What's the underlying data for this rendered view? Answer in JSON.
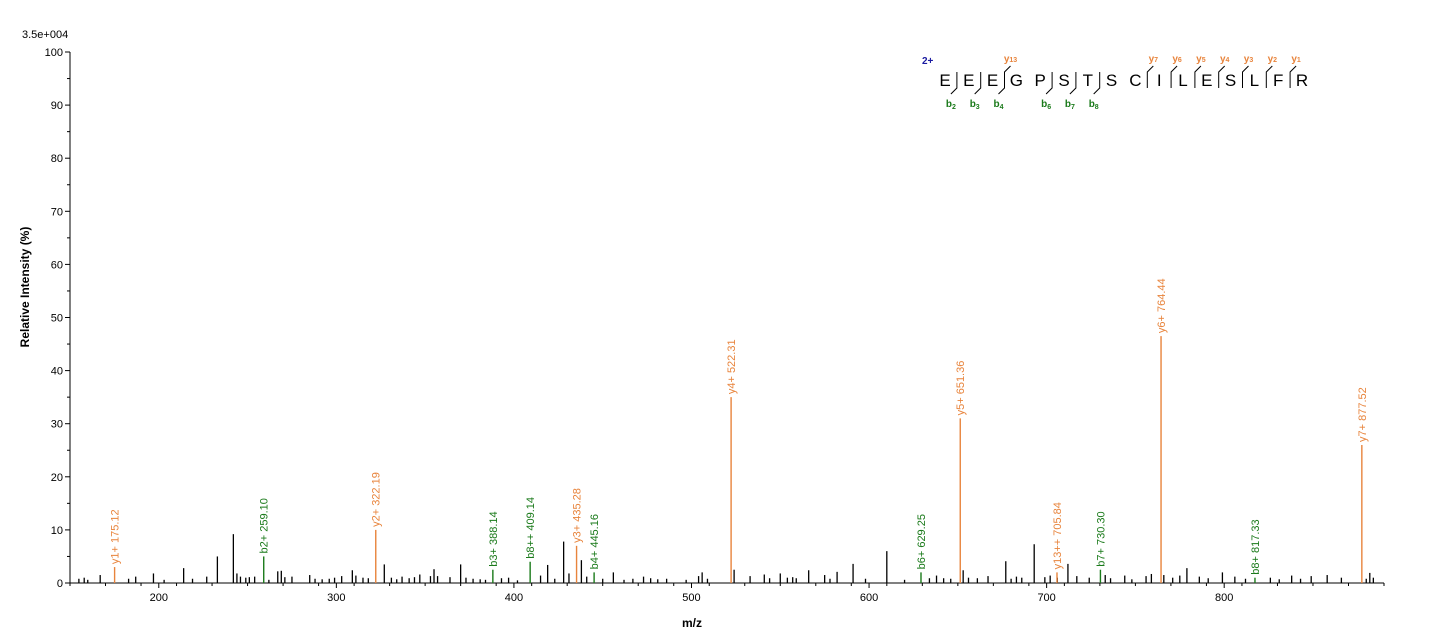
{
  "chart_data": {
    "type": "bar",
    "scale_label": "3.5e+004",
    "xlabel": "m/z",
    "ylabel": "Relative   Intensity (%)",
    "xlim": [
      150,
      890
    ],
    "ylim": [
      0,
      100
    ],
    "x_ticks": [
      200,
      300,
      400,
      500,
      600,
      700,
      800
    ],
    "y_ticks": [
      0,
      10,
      20,
      30,
      40,
      50,
      60,
      70,
      80,
      90,
      100
    ],
    "grid": false,
    "colors": {
      "y_ion": "#e8843c",
      "b_ion": "#1a7a1a",
      "unmatched": "#000000",
      "charge": "#1a1aa0"
    },
    "labeled_peaks": [
      {
        "type": "y",
        "mz": 175.12,
        "intensity": 3.0,
        "label": "y1+ 175.12"
      },
      {
        "type": "b",
        "mz": 259.1,
        "intensity": 5.0,
        "label": "b2+ 259.10"
      },
      {
        "type": "y",
        "mz": 322.19,
        "intensity": 10.0,
        "label": "y2+ 322.19"
      },
      {
        "type": "b",
        "mz": 388.14,
        "intensity": 2.5,
        "label": "b3+ 388.14"
      },
      {
        "type": "b",
        "mz": 409.14,
        "intensity": 4.0,
        "label": "b8++ 409.14"
      },
      {
        "type": "y",
        "mz": 435.28,
        "intensity": 7.0,
        "label": "y3+ 435.28"
      },
      {
        "type": "b",
        "mz": 445.16,
        "intensity": 2.0,
        "label": "b4+ 445.16"
      },
      {
        "type": "y",
        "mz": 522.31,
        "intensity": 35.0,
        "label": "y4+ 522.31"
      },
      {
        "type": "b",
        "mz": 629.25,
        "intensity": 2.0,
        "label": "b6+ 629.25"
      },
      {
        "type": "y",
        "mz": 651.36,
        "intensity": 31.0,
        "label": "y5+ 651.36"
      },
      {
        "type": "y",
        "mz": 705.84,
        "intensity": 2.0,
        "label": "y13++ 705.84"
      },
      {
        "type": "b",
        "mz": 730.3,
        "intensity": 2.5,
        "label": "b7+ 730.30"
      },
      {
        "type": "y",
        "mz": 764.44,
        "intensity": 46.5,
        "label": "y6+ 764.44"
      },
      {
        "type": "b",
        "mz": 817.33,
        "intensity": 1.0,
        "label": "b8+ 817.33"
      },
      {
        "type": "y",
        "mz": 877.52,
        "intensity": 26.0,
        "label": "y7+ 877.52"
      }
    ],
    "unlabeled_peaks": [
      [
        155,
        0.8
      ],
      [
        158,
        1.0
      ],
      [
        160,
        0.6
      ],
      [
        167,
        1.5
      ],
      [
        183,
        0.8
      ],
      [
        187,
        1.2
      ],
      [
        197,
        1.8
      ],
      [
        203,
        0.6
      ],
      [
        214,
        2.8
      ],
      [
        219,
        0.8
      ],
      [
        227,
        1.2
      ],
      [
        233,
        5.0
      ],
      [
        242,
        9.2
      ],
      [
        244,
        1.8
      ],
      [
        246,
        1.2
      ],
      [
        249,
        1.0
      ],
      [
        251,
        1.1
      ],
      [
        254,
        1.2
      ],
      [
        262,
        0.6
      ],
      [
        267,
        2.2
      ],
      [
        269,
        2.3
      ],
      [
        271,
        1.1
      ],
      [
        275,
        1.2
      ],
      [
        285,
        1.5
      ],
      [
        288,
        0.8
      ],
      [
        292,
        0.7
      ],
      [
        296,
        0.8
      ],
      [
        299,
        1.0
      ],
      [
        303,
        1.3
      ],
      [
        309,
        2.4
      ],
      [
        311,
        1.4
      ],
      [
        315,
        1.0
      ],
      [
        318,
        0.9
      ],
      [
        327,
        3.5
      ],
      [
        331,
        1.0
      ],
      [
        334,
        0.7
      ],
      [
        337,
        1.2
      ],
      [
        341,
        0.9
      ],
      [
        344,
        1.1
      ],
      [
        347,
        1.6
      ],
      [
        353,
        1.3
      ],
      [
        355,
        2.6
      ],
      [
        357,
        1.3
      ],
      [
        364,
        1.1
      ],
      [
        370,
        3.5
      ],
      [
        373,
        1.0
      ],
      [
        377,
        0.8
      ],
      [
        381,
        0.7
      ],
      [
        384,
        0.6
      ],
      [
        393,
        0.9
      ],
      [
        397,
        1.0
      ],
      [
        402,
        0.5
      ],
      [
        415,
        1.4
      ],
      [
        419,
        3.4
      ],
      [
        423,
        0.8
      ],
      [
        428,
        7.8
      ],
      [
        431,
        1.8
      ],
      [
        438,
        4.3
      ],
      [
        441,
        1.2
      ],
      [
        450,
        0.8
      ],
      [
        456,
        2.0
      ],
      [
        462,
        0.6
      ],
      [
        467,
        0.8
      ],
      [
        473,
        1.2
      ],
      [
        477,
        0.9
      ],
      [
        481,
        0.7
      ],
      [
        486,
        0.8
      ],
      [
        497,
        0.6
      ],
      [
        504,
        1.3
      ],
      [
        506,
        2.0
      ],
      [
        509,
        0.8
      ],
      [
        524,
        2.5
      ],
      [
        533,
        1.3
      ],
      [
        541,
        1.6
      ],
      [
        544,
        0.9
      ],
      [
        550,
        1.8
      ],
      [
        554,
        1.0
      ],
      [
        557,
        1.1
      ],
      [
        559,
        0.9
      ],
      [
        566,
        2.4
      ],
      [
        575,
        1.5
      ],
      [
        578,
        0.8
      ],
      [
        582,
        2.1
      ],
      [
        591,
        3.6
      ],
      [
        598,
        0.8
      ],
      [
        610,
        6.0
      ],
      [
        620,
        0.6
      ],
      [
        634,
        0.9
      ],
      [
        638,
        1.4
      ],
      [
        642,
        0.9
      ],
      [
        646,
        0.8
      ],
      [
        653,
        2.4
      ],
      [
        656,
        1.0
      ],
      [
        661,
        0.9
      ],
      [
        667,
        1.3
      ],
      [
        677,
        4.1
      ],
      [
        680,
        0.8
      ],
      [
        683,
        1.2
      ],
      [
        686,
        1.0
      ],
      [
        693,
        7.3
      ],
      [
        699,
        1.1
      ],
      [
        702,
        1.4
      ],
      [
        706,
        1.0
      ],
      [
        712,
        3.6
      ],
      [
        717,
        1.3
      ],
      [
        724,
        1.0
      ],
      [
        733,
        1.5
      ],
      [
        736,
        0.9
      ],
      [
        744,
        1.4
      ],
      [
        748,
        0.7
      ],
      [
        756,
        1.3
      ],
      [
        759,
        1.7
      ],
      [
        766,
        1.5
      ],
      [
        771,
        1.0
      ],
      [
        775,
        1.4
      ],
      [
        779,
        2.8
      ],
      [
        786,
        1.2
      ],
      [
        791,
        0.9
      ],
      [
        799,
        2.0
      ],
      [
        806,
        1.2
      ],
      [
        812,
        0.8
      ],
      [
        826,
        1.0
      ],
      [
        831,
        0.7
      ],
      [
        838,
        1.4
      ],
      [
        843,
        0.8
      ],
      [
        849,
        1.3
      ],
      [
        858,
        1.5
      ],
      [
        866,
        1.0
      ],
      [
        880,
        0.8
      ],
      [
        882,
        1.9
      ],
      [
        884,
        1.0
      ]
    ],
    "annotation": {
      "charge": "2+",
      "sequence": [
        "E",
        "E",
        "E",
        "G",
        "P",
        "S",
        "T",
        "S",
        "C",
        "I",
        "L",
        "E",
        "S",
        "L",
        "F",
        "R"
      ],
      "b_ions": [
        {
          "label": "b",
          "n": "2",
          "after": 1
        },
        {
          "label": "b",
          "n": "3",
          "after": 2
        },
        {
          "label": "b",
          "n": "4",
          "after": 3
        },
        {
          "label": "b",
          "n": "6",
          "after": 5
        },
        {
          "label": "b",
          "n": "7",
          "after": 6
        },
        {
          "label": "b",
          "n": "8",
          "after": 7
        }
      ],
      "y_ions": [
        {
          "label": "y",
          "n": "13",
          "after": 3
        },
        {
          "label": "y",
          "n": "7",
          "after": 9
        },
        {
          "label": "y",
          "n": "6",
          "after": 10
        },
        {
          "label": "y",
          "n": "5",
          "after": 11
        },
        {
          "label": "y",
          "n": "4",
          "after": 12
        },
        {
          "label": "y",
          "n": "3",
          "after": 13
        },
        {
          "label": "y",
          "n": "2",
          "after": 14
        },
        {
          "label": "y",
          "n": "1",
          "after": 15
        }
      ]
    }
  }
}
